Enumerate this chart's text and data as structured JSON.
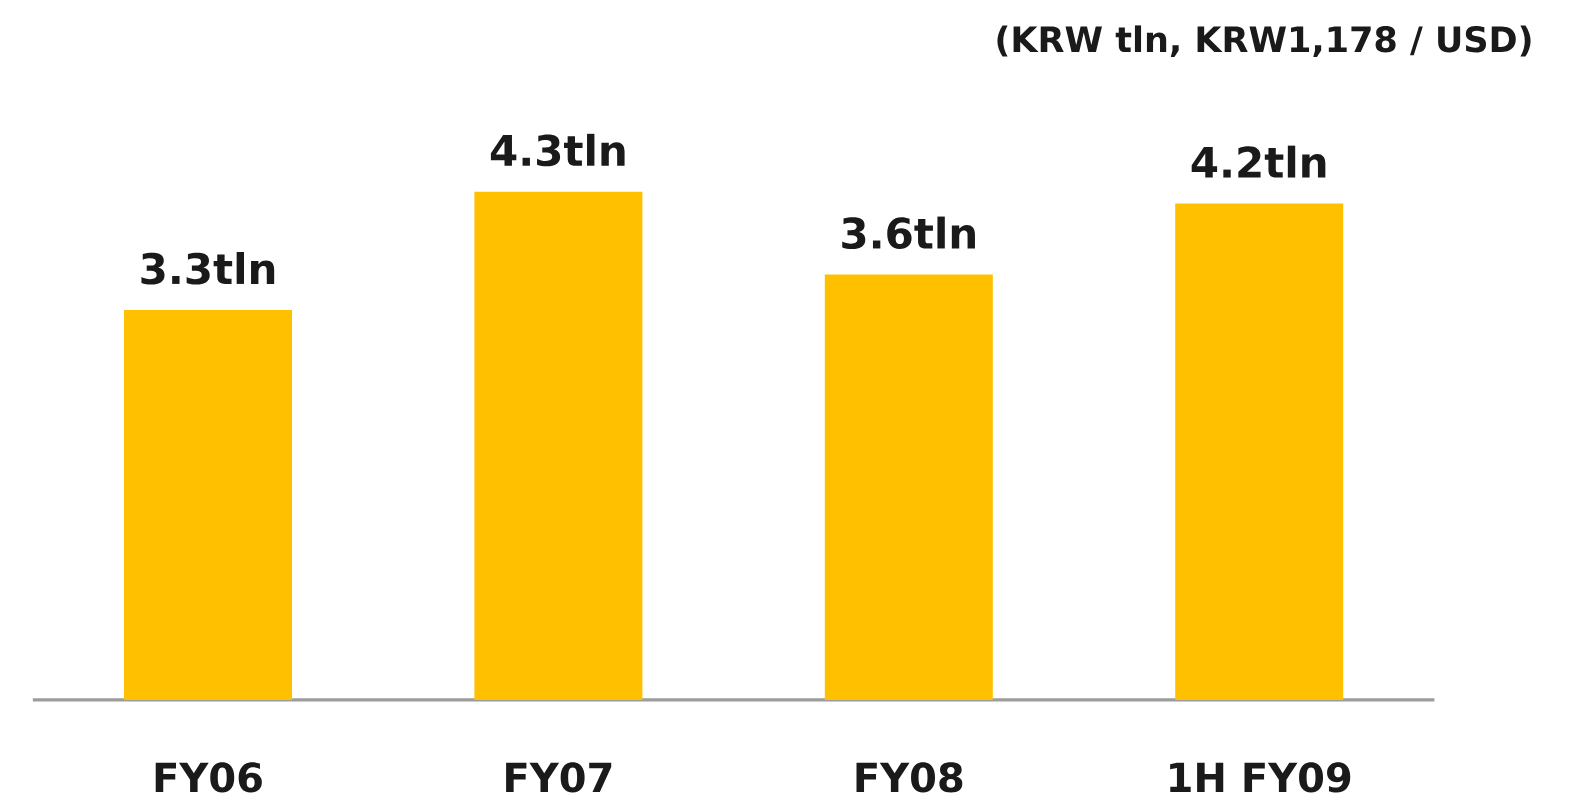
{
  "chart_data": {
    "type": "bar",
    "categories": [
      "FY06",
      "FY07",
      "FY08",
      "1H FY09"
    ],
    "values": [
      3.3,
      4.3,
      3.6,
      4.2
    ],
    "value_labels": [
      "3.3tln",
      "4.3tln",
      "3.6tln",
      "4.2tln"
    ],
    "color": "#ffc000",
    "annotations": [
      "(KRW tln, KRW1,178 / USD)"
    ]
  }
}
